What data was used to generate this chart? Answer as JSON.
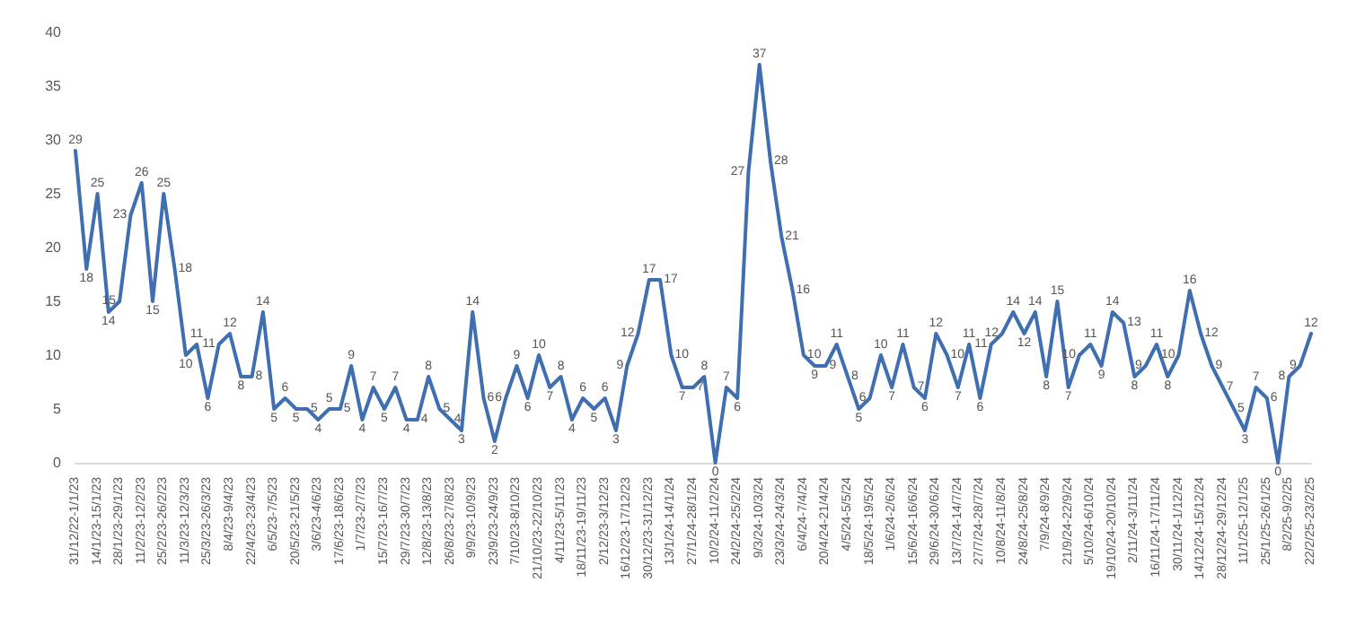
{
  "chart_data": {
    "type": "line",
    "categories": [
      "31/12/22-1/1/23",
      null,
      "14/1/23-15/1/23",
      null,
      "28/1/23-29/1/23",
      null,
      "11/2/23-12/2/23",
      null,
      "25/2/23-26/2/23",
      null,
      "11/3/23-12/3/23",
      null,
      "25/3/23-26/3/23",
      null,
      "8/4/23-9/4/23",
      null,
      "22/4/23-23/4/23",
      null,
      "6/5/23-7/5/23",
      null,
      "20/5/23-21/5/23",
      null,
      "3/6/23-4/6/23",
      null,
      "17/6/23-18/6/23",
      null,
      "1/7/23-2/7/23",
      null,
      "15/7/23-16/7/23",
      null,
      "29/7/23-30/7/23",
      null,
      "12/8/23-13/8/23",
      null,
      "26/8/23-27/8/23",
      null,
      "9/9/23-10/9/23",
      null,
      "23/9/23-24/9/23",
      null,
      "7/10/23-8/10/23",
      null,
      "21/10/23-22/10/23",
      null,
      "4/11/23-5/11/23",
      null,
      "18/11/23-19/11/23",
      null,
      "2/12/23-3/12/23",
      null,
      "16/12/23-17/12/23",
      null,
      "30/12/23-31/12/23",
      null,
      "13/1/24-14/1/24",
      null,
      "27/1/24-28/1/24",
      null,
      "10/2/24-11/2/24",
      null,
      "24/2/24-25/2/24",
      null,
      "9/3/24-10/3/24",
      null,
      "23/3/24-24/3/24",
      null,
      "6/4/24-7/4/24",
      null,
      "20/4/24-21/4/24",
      null,
      "4/5/24-5/5/24",
      null,
      "18/5/24-19/5/24",
      null,
      "1/6/24-2/6/24",
      null,
      "15/6/24-16/6/24",
      null,
      "29/6/24-30/6/24",
      null,
      "13/7/24-14/7/24",
      null,
      "27/7/24-28/7/24",
      null,
      "10/8/24-11/8/24",
      null,
      "24/8/24-25/8/24",
      null,
      "7/9/24-8/9/24",
      null,
      "21/9/24-22/9/24",
      null,
      "5/10/24-6/10/24",
      null,
      "19/10/24-20/10/24",
      null,
      "2/11/24-3/11/24",
      null,
      "16/11/24-17/11/24",
      null,
      "30/11/24-1/12/24",
      null,
      "14/12/24-15/12/24",
      null,
      "28/12/24-29/12/24",
      null,
      "11/1/25-12/1/25",
      null,
      "25/1/25-26/1/25",
      null,
      "8/2/25-9/2/25",
      null,
      "22/2/25-23/2/25"
    ],
    "series": [
      {
        "color": "#3f6fb0",
        "values": [
          29,
          18,
          25,
          14,
          15,
          23,
          26,
          15,
          25,
          18,
          10,
          11,
          6,
          11,
          12,
          8,
          8,
          14,
          5,
          6,
          5,
          5,
          4,
          5,
          5,
          9,
          4,
          7,
          5,
          7,
          4,
          4,
          8,
          5,
          4,
          3,
          14,
          6,
          2,
          6,
          9,
          6,
          10,
          7,
          8,
          4,
          6,
          5,
          6,
          3,
          9,
          12,
          17,
          17,
          10,
          7,
          7,
          8,
          0,
          7,
          6,
          27,
          37,
          28,
          21,
          16,
          10,
          9,
          9,
          11,
          8,
          5,
          6,
          10,
          7,
          11,
          7,
          6,
          12,
          10,
          7,
          11,
          6,
          11,
          12,
          14,
          12,
          14,
          8,
          15,
          7,
          10,
          11,
          9,
          14,
          13,
          8,
          9,
          11,
          8,
          10,
          16,
          12,
          9,
          7,
          5,
          3,
          7,
          6,
          0,
          8,
          9,
          12
        ]
      }
    ],
    "ylim": [
      0,
      40
    ],
    "yticks": [
      0,
      5,
      10,
      15,
      20,
      25,
      30,
      35,
      40
    ],
    "grid": false,
    "marker": "none",
    "line_style": "solid",
    "data_labels": true
  }
}
